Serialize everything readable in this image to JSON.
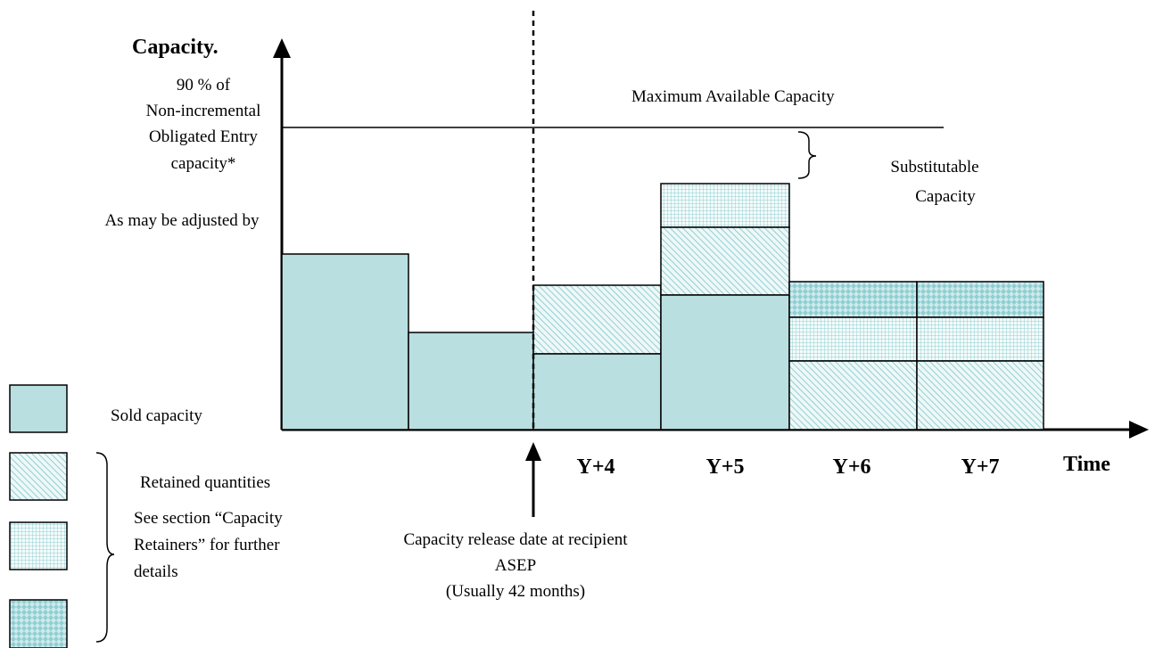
{
  "axis": {
    "y_label": "Capacity.",
    "x_label": "Time"
  },
  "y_annotation_lines": [
    "90 % of",
    "Non-incremental",
    "Obligated Entry",
    "capacity*",
    "As may be adjusted by"
  ],
  "max_line_label": "Maximum Available Capacity",
  "substitutable_label_lines": [
    "Substitutable",
    "Capacity"
  ],
  "year_labels": [
    "Y+4",
    "Y+5",
    "Y+6",
    "Y+7"
  ],
  "release_label_lines": [
    "Capacity release date at recipient",
    "ASEP",
    "(Usually 42 months)"
  ],
  "legend": {
    "sold": "Sold capacity",
    "retained": "Retained quantities",
    "see_section_lines": [
      "See section “Capacity",
      "Retainers” for further",
      "details"
    ]
  },
  "colors": {
    "sold_fill": "#b9dfe0",
    "hatch_color": "#7cc4c8",
    "grid_color": "#8fcfd2"
  }
}
